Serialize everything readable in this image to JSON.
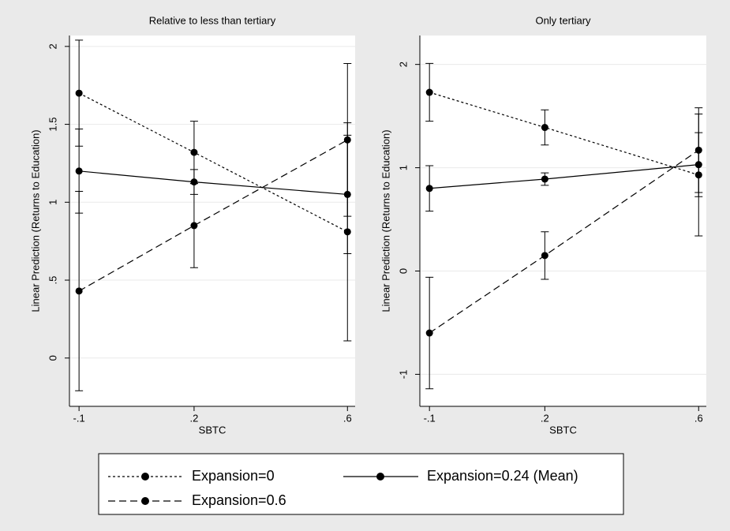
{
  "chart_data": [
    {
      "type": "line",
      "title": "Relative to less than tertiary",
      "x_label": "SBTC",
      "y_label": "Linear Prediction (Returns to Education)",
      "x": [
        -0.1,
        0.2,
        0.6
      ],
      "xlim": [
        -0.125,
        0.62
      ],
      "xticks": [
        {
          "value": -0.1,
          "label": "-.1"
        },
        {
          "value": 0.2,
          "label": ".2"
        },
        {
          "value": 0.6,
          "label": ".6"
        }
      ],
      "ylim": [
        -0.31,
        2.07
      ],
      "yticks": [
        0,
        {
          "value": 0.5,
          "label": ".5"
        },
        1,
        1.5,
        2
      ],
      "grid": true,
      "series": [
        {
          "name": "Expansion=0",
          "color": "#000000",
          "dash": "dotted",
          "values": [
            1.7,
            1.32,
            0.81
          ],
          "errors": [
            0.34,
            0.2,
            0.7
          ]
        },
        {
          "name": "Expansion=0.24 (Mean)",
          "color": "#000000",
          "dash": "solid",
          "values": [
            1.2,
            1.13,
            1.05
          ],
          "errors": [
            0.27,
            0.08,
            0.38
          ]
        },
        {
          "name": "Expansion=0.6",
          "color": "#000000",
          "dash": "dashed",
          "values": [
            0.43,
            0.85,
            1.4
          ],
          "errors": [
            0.64,
            0.27,
            0.49
          ]
        }
      ]
    },
    {
      "type": "line",
      "title": "Only tertiary",
      "x_label": "SBTC",
      "y_label": "Linear Prediction (Returns to Education)",
      "x": [
        -0.1,
        0.2,
        0.6
      ],
      "xlim": [
        -0.125,
        0.62
      ],
      "xticks": [
        {
          "value": -0.1,
          "label": "-.1"
        },
        {
          "value": 0.2,
          "label": ".2"
        },
        {
          "value": 0.6,
          "label": ".6"
        }
      ],
      "ylim": [
        -1.31,
        2.28
      ],
      "yticks": [
        -1,
        0,
        1,
        2
      ],
      "grid": true,
      "series": [
        {
          "color": "#000000",
          "dash": "dotted",
          "values": [
            1.73,
            1.39,
            0.93
          ],
          "errors": [
            0.28,
            0.17,
            0.59
          ]
        },
        {
          "color": "#000000",
          "dash": "solid",
          "values": [
            0.8,
            0.89,
            1.03
          ],
          "errors": [
            0.22,
            0.06,
            0.31
          ]
        },
        {
          "color": "#000000",
          "dash": "dashed",
          "values": [
            -0.6,
            0.15,
            1.17
          ],
          "errors": [
            0.54,
            0.23,
            0.41
          ]
        }
      ]
    }
  ]
}
